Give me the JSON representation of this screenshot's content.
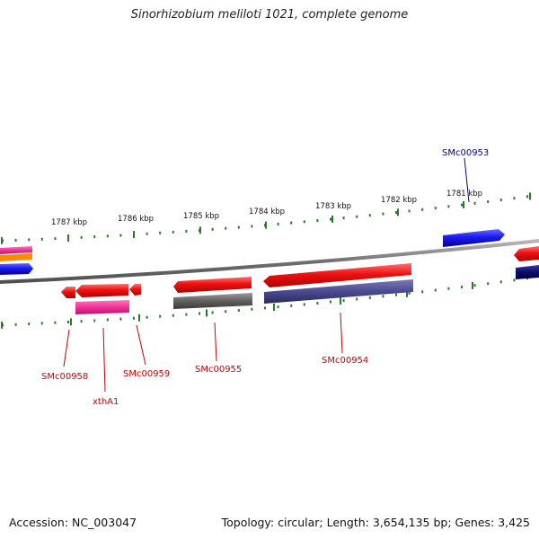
{
  "title": "Sinorhizobium meliloti 1021, complete genome",
  "footer": {
    "accession": "Accession: NC_003047",
    "summary": "Topology: circular; Length: 3,654,135 bp; Genes: 3,425"
  },
  "colors": {
    "forward_red": "#ee1111",
    "reverse_red": "#ee1111",
    "blue": "#1a1aee",
    "navy": "#0a0a6e",
    "magenta": "#ee3399",
    "slate": "#4a4a90",
    "gray": "#606060",
    "tick_green": "#2a7a2a",
    "label_red": "#cc0000",
    "label_blue": "#000099"
  },
  "ruler": {
    "labels": [
      "1787 kbp",
      "1786 kbp",
      "1785 kbp",
      "1784 kbp",
      "1783 kbp",
      "1782 kbp",
      "1781 kbp"
    ]
  },
  "gene_labels": [
    {
      "id": "smc00953",
      "text": "SMc00953",
      "color": "blue"
    },
    {
      "id": "smc00958",
      "text": "SMc00958",
      "color": "red"
    },
    {
      "id": "xtha1",
      "text": "xthA1",
      "color": "red"
    },
    {
      "id": "smc00959",
      "text": "SMc00959",
      "color": "red"
    },
    {
      "id": "smc00955",
      "text": "SMc00955",
      "color": "red"
    },
    {
      "id": "smc00954",
      "text": "SMc00954",
      "color": "red"
    }
  ]
}
